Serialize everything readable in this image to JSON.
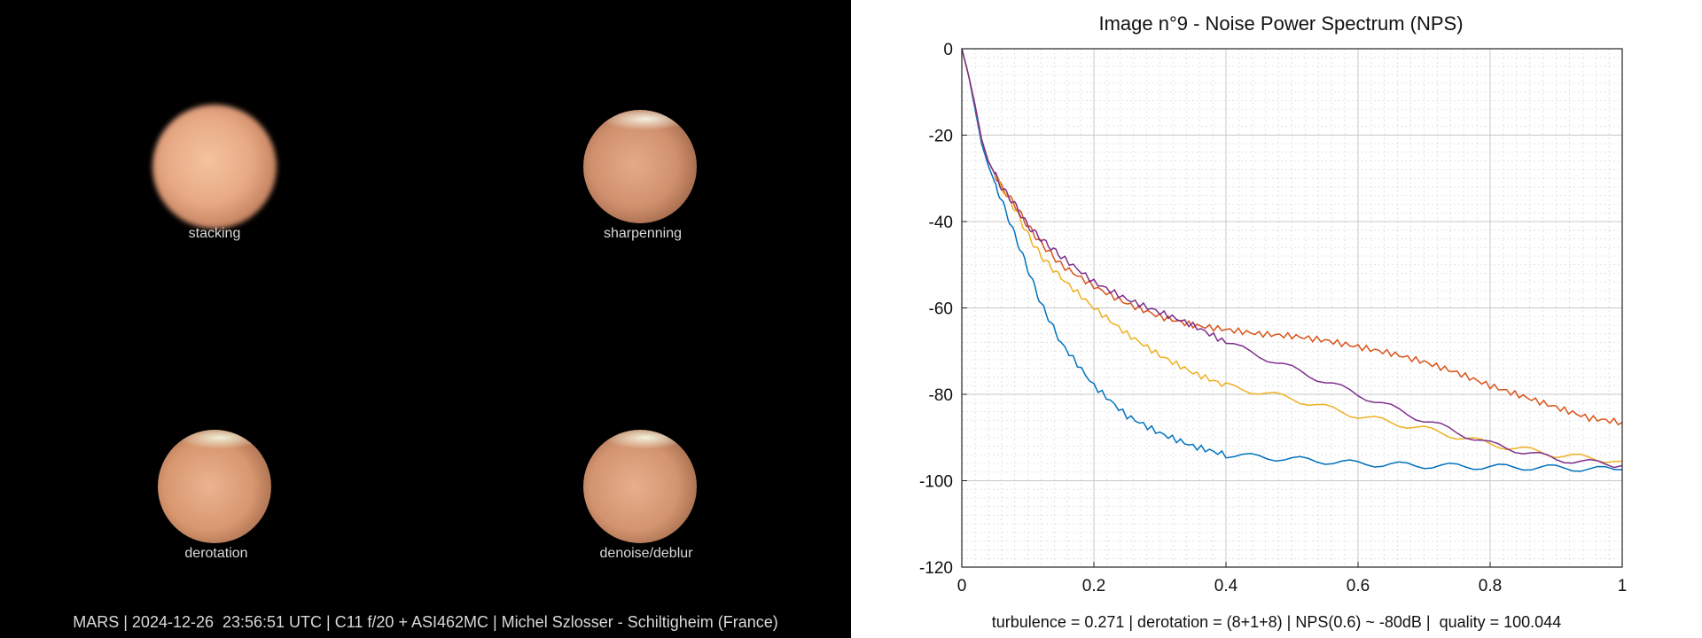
{
  "left": {
    "images": [
      {
        "label": "stacking"
      },
      {
        "label": "sharpenning"
      },
      {
        "label": "derotation"
      },
      {
        "label": "denoise/deblur"
      }
    ],
    "caption": "MARS | 2024-12-26  23:56:51 UTC | C11 f/20 + ASI462MC | Michel Szlosser - Schiltigheim (France)"
  },
  "chart_data": {
    "type": "line",
    "title": "Image n°9 - Noise Power Spectrum (NPS)",
    "xlabel": "",
    "ylabel": "",
    "xlim": [
      0,
      1
    ],
    "ylim": [
      -120,
      0
    ],
    "xticks": [
      "0",
      "0.2",
      "0.4",
      "0.6",
      "0.8",
      "1"
    ],
    "yticks": [
      "0",
      "-20",
      "-40",
      "-60",
      "-80",
      "-100",
      "-120"
    ],
    "grid": true,
    "footer": "turbulence = 0.271 | derotation = (8+1+8) | NPS(0.6) ~ -80dB |  quality = 100.044",
    "series": [
      {
        "color": "#0072bd",
        "x": [
          0,
          0.01,
          0.02,
          0.03,
          0.04,
          0.05,
          0.06,
          0.08,
          0.1,
          0.12,
          0.15,
          0.2,
          0.25,
          0.3,
          0.35,
          0.4,
          0.5,
          0.6,
          0.7,
          0.8,
          0.9,
          1.0
        ],
        "y": [
          0,
          -6,
          -14,
          -22,
          -27,
          -31,
          -35,
          -43,
          -51,
          -59,
          -68,
          -78,
          -85,
          -89,
          -92,
          -94,
          -95,
          -96,
          -96.5,
          -96.8,
          -97,
          -97.5
        ]
      },
      {
        "color": "#d95319",
        "x": [
          0,
          0.01,
          0.02,
          0.03,
          0.04,
          0.05,
          0.06,
          0.08,
          0.1,
          0.12,
          0.15,
          0.2,
          0.25,
          0.3,
          0.35,
          0.4,
          0.45,
          0.5,
          0.55,
          0.6,
          0.65,
          0.7,
          0.75,
          0.8,
          0.85,
          0.9,
          0.95,
          1.0
        ],
        "y": [
          0,
          -6,
          -13,
          -21,
          -26,
          -29,
          -32,
          -36,
          -41,
          -45,
          -50,
          -55,
          -59,
          -62,
          -64,
          -65,
          -66,
          -66.5,
          -67.5,
          -69,
          -70.5,
          -72.5,
          -75,
          -78,
          -80.5,
          -83,
          -85.5,
          -86.5
        ]
      },
      {
        "color": "#edb120",
        "x": [
          0,
          0.01,
          0.02,
          0.03,
          0.04,
          0.05,
          0.06,
          0.08,
          0.1,
          0.12,
          0.15,
          0.2,
          0.25,
          0.3,
          0.35,
          0.4,
          0.5,
          0.6,
          0.7,
          0.8,
          0.9,
          1.0
        ],
        "y": [
          0,
          -6,
          -13,
          -21,
          -26,
          -29,
          -32,
          -37,
          -43,
          -48,
          -53,
          -60,
          -66,
          -71,
          -75,
          -78,
          -81,
          -85,
          -88,
          -91.5,
          -94,
          -95.5
        ]
      },
      {
        "color": "#7e2f8e",
        "x": [
          0,
          0.01,
          0.02,
          0.03,
          0.04,
          0.05,
          0.06,
          0.08,
          0.1,
          0.12,
          0.15,
          0.2,
          0.25,
          0.3,
          0.35,
          0.4,
          0.5,
          0.6,
          0.7,
          0.8,
          0.9,
          1.0
        ],
        "y": [
          0,
          -6,
          -13,
          -21,
          -26,
          -29,
          -32,
          -36,
          -41,
          -44,
          -48,
          -54,
          -58,
          -61,
          -64,
          -68,
          -74,
          -80,
          -86,
          -91.5,
          -95,
          -96.5
        ]
      }
    ]
  }
}
